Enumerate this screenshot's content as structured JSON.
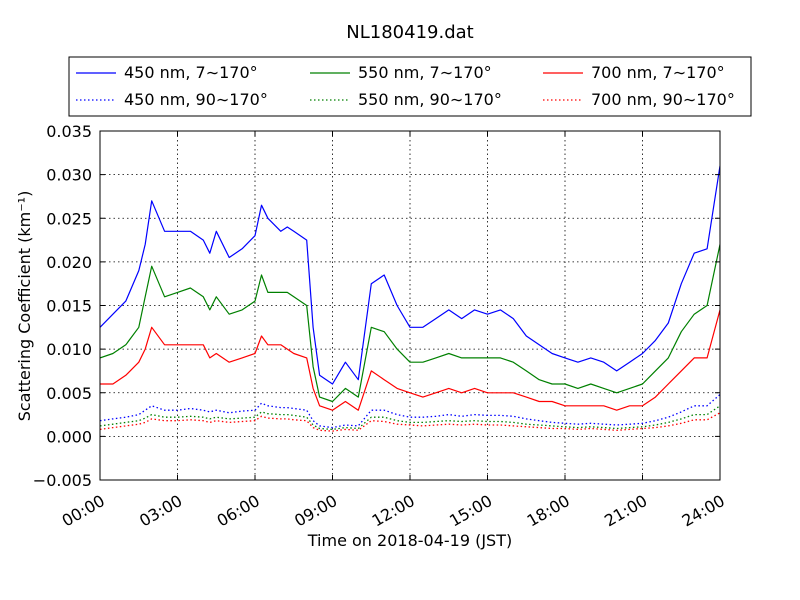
{
  "chart_data": {
    "type": "line",
    "title": "NL180419.dat",
    "xlabel": "Time on 2018-04-19 (JST)",
    "ylabel": "Scattering Coefficient (km⁻¹)",
    "x_unit": "hours",
    "xlim": [
      0,
      24
    ],
    "ylim": [
      -0.005,
      0.035
    ],
    "xticks": [
      0,
      3,
      6,
      9,
      12,
      15,
      18,
      21,
      24
    ],
    "xtick_labels": [
      "00:00",
      "03:00",
      "06:00",
      "09:00",
      "12:00",
      "15:00",
      "18:00",
      "21:00",
      "24:00"
    ],
    "yticks": [
      -0.005,
      0.0,
      0.005,
      0.01,
      0.015,
      0.02,
      0.025,
      0.03,
      0.035
    ],
    "ytick_labels": [
      "−0.005",
      "0.000",
      "0.005",
      "0.010",
      "0.015",
      "0.020",
      "0.025",
      "0.030",
      "0.035"
    ],
    "grid": true,
    "legend_position": "top, above plot",
    "x": [
      0.0,
      0.5,
      1.0,
      1.5,
      1.75,
      2.0,
      2.5,
      3.0,
      3.5,
      4.0,
      4.25,
      4.5,
      5.0,
      5.5,
      6.0,
      6.25,
      6.5,
      7.0,
      7.25,
      7.5,
      8.0,
      8.25,
      8.5,
      9.0,
      9.5,
      10.0,
      10.5,
      11.0,
      11.5,
      12.0,
      12.5,
      13.0,
      13.5,
      14.0,
      14.5,
      15.0,
      15.5,
      16.0,
      16.5,
      17.0,
      17.5,
      18.0,
      18.5,
      19.0,
      19.5,
      20.0,
      20.5,
      21.0,
      21.5,
      22.0,
      22.5,
      23.0,
      23.5,
      24.0
    ],
    "series": [
      {
        "name": "450 nm, 7∼170°",
        "color": "#0000ff",
        "style": "solid",
        "values": [
          0.0125,
          0.014,
          0.0155,
          0.019,
          0.022,
          0.027,
          0.0235,
          0.0235,
          0.0235,
          0.0225,
          0.021,
          0.0235,
          0.0205,
          0.0215,
          0.023,
          0.0265,
          0.025,
          0.0235,
          0.024,
          0.0235,
          0.0225,
          0.0125,
          0.007,
          0.006,
          0.0085,
          0.0065,
          0.0175,
          0.0185,
          0.015,
          0.0125,
          0.0125,
          0.0135,
          0.0145,
          0.0135,
          0.0145,
          0.014,
          0.0145,
          0.0135,
          0.0115,
          0.0105,
          0.0095,
          0.009,
          0.0085,
          0.009,
          0.0085,
          0.0075,
          0.0085,
          0.0095,
          0.011,
          0.013,
          0.0175,
          0.021,
          0.0215,
          0.031
        ]
      },
      {
        "name": "550 nm, 7∼170°",
        "color": "#008000",
        "style": "solid",
        "values": [
          0.009,
          0.0095,
          0.0105,
          0.0125,
          0.016,
          0.0195,
          0.016,
          0.0165,
          0.017,
          0.016,
          0.0145,
          0.016,
          0.014,
          0.0145,
          0.0155,
          0.0185,
          0.0165,
          0.0165,
          0.0165,
          0.016,
          0.015,
          0.008,
          0.0045,
          0.004,
          0.0055,
          0.0045,
          0.0125,
          0.012,
          0.01,
          0.0085,
          0.0085,
          0.009,
          0.0095,
          0.009,
          0.009,
          0.009,
          0.009,
          0.0085,
          0.0075,
          0.0065,
          0.006,
          0.006,
          0.0055,
          0.006,
          0.0055,
          0.005,
          0.0055,
          0.006,
          0.0075,
          0.009,
          0.012,
          0.014,
          0.015,
          0.022
        ]
      },
      {
        "name": "700 nm, 7∼170°",
        "color": "#ff0000",
        "style": "solid",
        "values": [
          0.006,
          0.006,
          0.007,
          0.0085,
          0.01,
          0.0125,
          0.0105,
          0.0105,
          0.0105,
          0.0105,
          0.009,
          0.0095,
          0.0085,
          0.009,
          0.0095,
          0.0115,
          0.0105,
          0.0105,
          0.01,
          0.0095,
          0.009,
          0.0055,
          0.0035,
          0.003,
          0.004,
          0.003,
          0.0075,
          0.0065,
          0.0055,
          0.005,
          0.0045,
          0.005,
          0.0055,
          0.005,
          0.0055,
          0.005,
          0.005,
          0.005,
          0.0045,
          0.004,
          0.004,
          0.0035,
          0.0035,
          0.0035,
          0.0035,
          0.003,
          0.0035,
          0.0035,
          0.0045,
          0.006,
          0.0075,
          0.009,
          0.009,
          0.0145
        ]
      },
      {
        "name": "450 nm, 90∼170°",
        "color": "#0000ff",
        "style": "dotted",
        "values": [
          0.0018,
          0.002,
          0.0022,
          0.0025,
          0.003,
          0.0035,
          0.003,
          0.003,
          0.0032,
          0.003,
          0.0028,
          0.003,
          0.0027,
          0.0029,
          0.003,
          0.0038,
          0.0035,
          0.0033,
          0.0033,
          0.0032,
          0.003,
          0.0018,
          0.0012,
          0.001,
          0.0013,
          0.0012,
          0.003,
          0.003,
          0.0025,
          0.0022,
          0.0022,
          0.0023,
          0.0025,
          0.0023,
          0.0025,
          0.0024,
          0.0024,
          0.0023,
          0.002,
          0.0018,
          0.0016,
          0.0015,
          0.0014,
          0.0015,
          0.0014,
          0.0013,
          0.0014,
          0.0015,
          0.0018,
          0.0022,
          0.0028,
          0.0035,
          0.0035,
          0.0048
        ]
      },
      {
        "name": "550 nm, 90∼170°",
        "color": "#008000",
        "style": "dotted",
        "values": [
          0.0012,
          0.0014,
          0.0016,
          0.0018,
          0.0021,
          0.0025,
          0.0022,
          0.0022,
          0.0023,
          0.0022,
          0.002,
          0.0022,
          0.002,
          0.0021,
          0.0022,
          0.0028,
          0.0026,
          0.0025,
          0.0025,
          0.0024,
          0.0022,
          0.0013,
          0.0009,
          0.0008,
          0.001,
          0.0009,
          0.0022,
          0.0022,
          0.0018,
          0.0016,
          0.0016,
          0.0017,
          0.0018,
          0.0017,
          0.0018,
          0.0017,
          0.0017,
          0.0016,
          0.0014,
          0.0013,
          0.0012,
          0.0011,
          0.001,
          0.0011,
          0.001,
          0.0009,
          0.001,
          0.0011,
          0.0013,
          0.0016,
          0.002,
          0.0025,
          0.0025,
          0.0035
        ]
      },
      {
        "name": "700 nm, 90∼170°",
        "color": "#ff0000",
        "style": "dotted",
        "values": [
          0.0008,
          0.001,
          0.0012,
          0.0014,
          0.0016,
          0.002,
          0.0018,
          0.0018,
          0.0019,
          0.0018,
          0.0016,
          0.0018,
          0.0016,
          0.0017,
          0.0018,
          0.0023,
          0.0021,
          0.002,
          0.002,
          0.0019,
          0.0018,
          0.001,
          0.0007,
          0.0006,
          0.0008,
          0.0007,
          0.0018,
          0.0017,
          0.0014,
          0.0013,
          0.0012,
          0.0013,
          0.0014,
          0.0013,
          0.0014,
          0.0013,
          0.0013,
          0.0012,
          0.0011,
          0.001,
          0.0009,
          0.0009,
          0.0008,
          0.0009,
          0.0008,
          0.0007,
          0.0008,
          0.0009,
          0.001,
          0.0012,
          0.0015,
          0.0019,
          0.0019,
          0.0027
        ]
      }
    ]
  }
}
